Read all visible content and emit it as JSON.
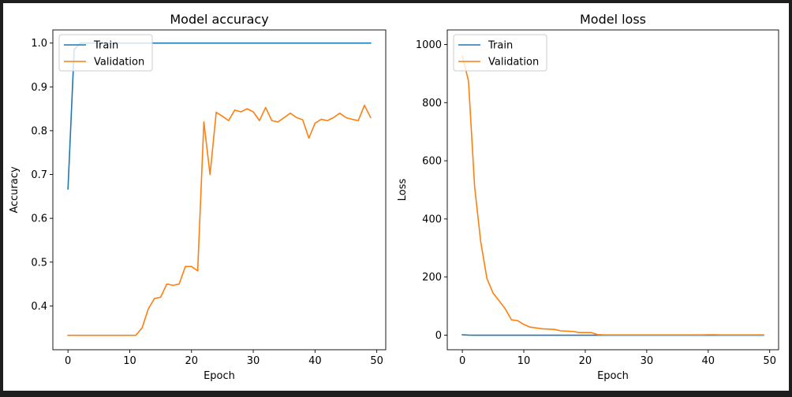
{
  "colors": {
    "train": "#1f77b4",
    "validation": "#ff7f0e",
    "frame_bg": "#1e1e1e"
  },
  "chart_data": [
    {
      "type": "line",
      "title": "Model accuracy",
      "xlabel": "Epoch",
      "ylabel": "Accuracy",
      "xlim": [
        -2.45,
        51.45
      ],
      "ylim": [
        0.3,
        1.03
      ],
      "xticks": [
        0,
        10,
        20,
        30,
        40,
        50
      ],
      "xtick_labels": [
        "0",
        "10",
        "20",
        "30",
        "40",
        "50"
      ],
      "yticks": [
        0.4,
        0.5,
        0.6,
        0.7,
        0.8,
        0.9,
        1.0
      ],
      "ytick_labels": [
        "0.4",
        "0.5",
        "0.6",
        "0.7",
        "0.8",
        "0.9",
        "1.0"
      ],
      "grid": false,
      "legend": "upper left",
      "series": [
        {
          "name": "Train",
          "color": "#1f77b4",
          "x": [
            0,
            1,
            2,
            3,
            4,
            5,
            6,
            7,
            8,
            9,
            10,
            11,
            12,
            13,
            14,
            15,
            16,
            17,
            18,
            19,
            20,
            21,
            22,
            23,
            24,
            25,
            26,
            27,
            28,
            29,
            30,
            31,
            32,
            33,
            34,
            35,
            36,
            37,
            38,
            39,
            40,
            41,
            42,
            43,
            44,
            45,
            46,
            47,
            48,
            49
          ],
          "values": [
            0.667,
            0.985,
            1.0,
            1.0,
            1.0,
            1.0,
            1.0,
            1.0,
            1.0,
            1.0,
            1.0,
            1.0,
            1.0,
            1.0,
            1.0,
            1.0,
            1.0,
            1.0,
            1.0,
            1.0,
            1.0,
            1.0,
            1.0,
            1.0,
            1.0,
            1.0,
            1.0,
            1.0,
            1.0,
            1.0,
            1.0,
            1.0,
            1.0,
            1.0,
            1.0,
            1.0,
            1.0,
            1.0,
            1.0,
            1.0,
            1.0,
            1.0,
            1.0,
            1.0,
            1.0,
            1.0,
            1.0,
            1.0,
            1.0,
            1.0
          ]
        },
        {
          "name": "Validation",
          "color": "#ff7f0e",
          "x": [
            0,
            1,
            2,
            3,
            4,
            5,
            6,
            7,
            8,
            9,
            10,
            11,
            12,
            13,
            14,
            15,
            16,
            17,
            18,
            19,
            20,
            21,
            22,
            23,
            24,
            25,
            26,
            27,
            28,
            29,
            30,
            31,
            32,
            33,
            34,
            35,
            36,
            37,
            38,
            39,
            40,
            41,
            42,
            43,
            44,
            45,
            46,
            47,
            48,
            49
          ],
          "values": [
            0.333,
            0.333,
            0.333,
            0.333,
            0.333,
            0.333,
            0.333,
            0.333,
            0.333,
            0.333,
            0.333,
            0.333,
            0.35,
            0.393,
            0.417,
            0.42,
            0.45,
            0.447,
            0.45,
            0.49,
            0.49,
            0.48,
            0.82,
            0.7,
            0.842,
            0.833,
            0.823,
            0.847,
            0.843,
            0.85,
            0.843,
            0.823,
            0.853,
            0.823,
            0.82,
            0.83,
            0.84,
            0.83,
            0.825,
            0.783,
            0.817,
            0.826,
            0.823,
            0.83,
            0.84,
            0.83,
            0.826,
            0.823,
            0.858,
            0.83
          ]
        }
      ]
    },
    {
      "type": "line",
      "title": "Model loss",
      "xlabel": "Epoch",
      "ylabel": "Loss",
      "xlim": [
        -2.45,
        51.45
      ],
      "ylim": [
        -50,
        1050
      ],
      "xticks": [
        0,
        10,
        20,
        30,
        40,
        50
      ],
      "xtick_labels": [
        "0",
        "10",
        "20",
        "30",
        "40",
        "50"
      ],
      "yticks": [
        0,
        200,
        400,
        600,
        800,
        1000
      ],
      "ytick_labels": [
        "0",
        "200",
        "400",
        "600",
        "800",
        "1000"
      ],
      "grid": false,
      "legend": "upper left",
      "series": [
        {
          "name": "Train",
          "color": "#1f77b4",
          "x": [
            0,
            1,
            2,
            3,
            4,
            5,
            6,
            7,
            8,
            9,
            10,
            11,
            12,
            13,
            14,
            15,
            16,
            17,
            18,
            19,
            20,
            21,
            22,
            23,
            24,
            25,
            26,
            27,
            28,
            29,
            30,
            31,
            32,
            33,
            34,
            35,
            36,
            37,
            38,
            39,
            40,
            41,
            42,
            43,
            44,
            45,
            46,
            47,
            48,
            49
          ],
          "values": [
            1.5,
            0.2,
            0.05,
            0.02,
            0.01,
            0.01,
            0.01,
            0.01,
            0.01,
            0.01,
            0.01,
            0.01,
            0.01,
            0.01,
            0.01,
            0.01,
            0.01,
            0.01,
            0.01,
            0.01,
            0.01,
            0.01,
            0.01,
            0.01,
            0.01,
            0.01,
            0.01,
            0.01,
            0.01,
            0.01,
            0.01,
            0.01,
            0.01,
            0.01,
            0.01,
            0.01,
            0.01,
            0.01,
            0.01,
            0.01,
            0.01,
            0.01,
            0.01,
            0.01,
            0.01,
            0.01,
            0.01,
            0.01,
            0.01,
            0.01
          ]
        },
        {
          "name": "Validation",
          "color": "#ff7f0e",
          "x": [
            0,
            1,
            2,
            3,
            4,
            5,
            6,
            7,
            8,
            9,
            10,
            11,
            12,
            13,
            14,
            15,
            16,
            17,
            18,
            19,
            20,
            21,
            22,
            23,
            24,
            25,
            26,
            27,
            28,
            29,
            30,
            31,
            32,
            33,
            34,
            35,
            36,
            37,
            38,
            39,
            40,
            41,
            42,
            43,
            44,
            45,
            46,
            47,
            48,
            49
          ],
          "values": [
            960,
            875,
            510,
            320,
            195,
            145,
            118,
            90,
            53,
            50,
            37,
            28,
            25,
            22,
            21,
            20,
            15,
            14,
            13,
            9,
            9,
            9,
            2,
            1,
            1,
            1,
            1,
            1,
            1,
            1,
            1,
            1,
            1,
            1,
            1,
            1,
            1,
            1,
            1,
            1,
            1.5,
            1.5,
            1,
            1,
            1,
            1,
            1,
            1,
            1,
            1
          ]
        }
      ]
    }
  ]
}
